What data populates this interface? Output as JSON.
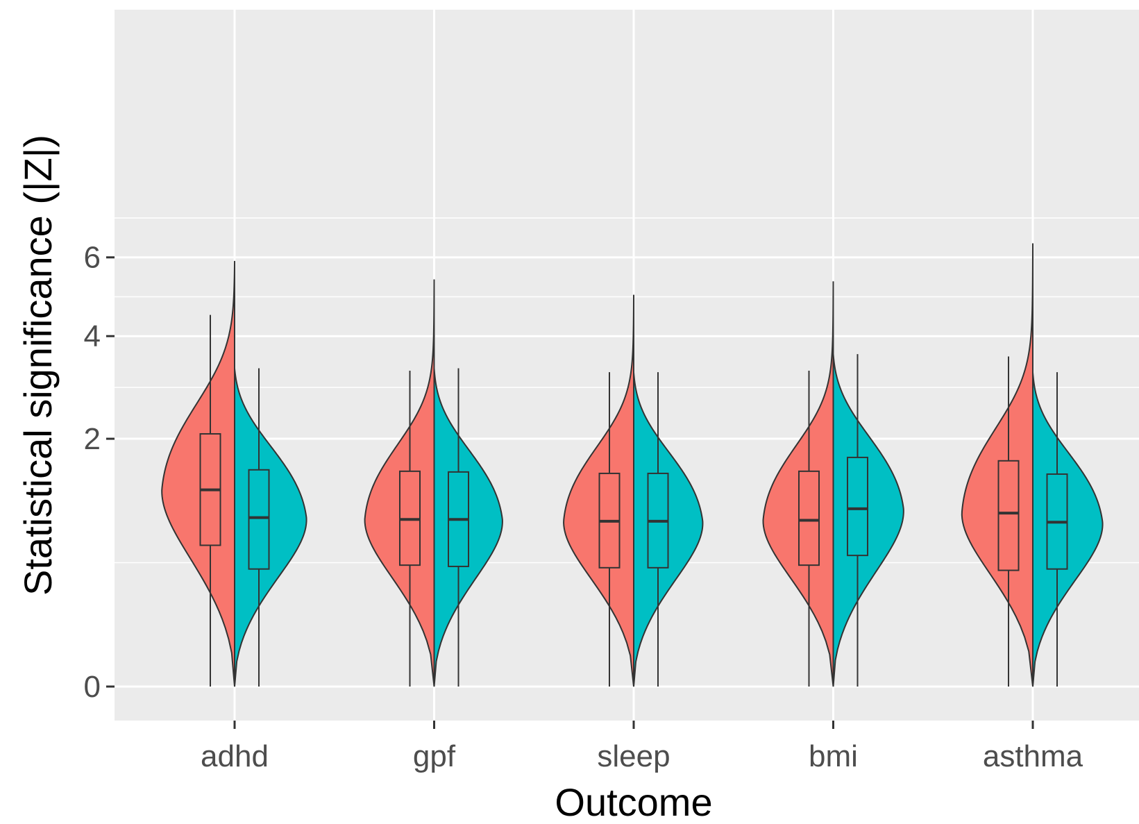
{
  "chart_data": {
    "type": "violin",
    "title": "",
    "xlabel": "Outcome",
    "ylabel": "Statistical significance (|Z|)",
    "y_scale": "sqrt",
    "ylim": [
      0,
      6.8
    ],
    "y_ticks": [
      0,
      2,
      4,
      6
    ],
    "y_tick_labels": [
      "0",
      "2",
      "4",
      "6"
    ],
    "categories": [
      "adhd",
      "gpf",
      "sleep",
      "bmi",
      "asthma"
    ],
    "legend": "none",
    "grid": true,
    "panel_background": "#ebebeb",
    "series": [
      {
        "color": "#f8766d",
        "side": "left",
        "box": [
          {
            "min": 0,
            "q1": 0.65,
            "median": 1.26,
            "q3": 2.08,
            "max": 4.5
          },
          {
            "min": 0,
            "q1": 0.48,
            "median": 0.91,
            "q3": 1.51,
            "max": 3.25
          },
          {
            "min": 0,
            "q1": 0.46,
            "median": 0.89,
            "q3": 1.48,
            "max": 3.22
          },
          {
            "min": 0,
            "q1": 0.48,
            "median": 0.9,
            "q3": 1.51,
            "max": 3.25
          },
          {
            "min": 0,
            "q1": 0.44,
            "median": 0.98,
            "q3": 1.66,
            "max": 3.55
          }
        ],
        "density_max": [
          5.9,
          5.4,
          5.0,
          5.35,
          6.4
        ],
        "density_peak_width": [
          0.98,
          0.93,
          0.94,
          0.94,
          0.95
        ]
      },
      {
        "color": "#00bfc4",
        "side": "right",
        "box": [
          {
            "min": 0,
            "q1": 0.45,
            "median": 0.93,
            "q3": 1.53,
            "max": 3.3
          },
          {
            "min": 0,
            "q1": 0.47,
            "median": 0.91,
            "q3": 1.5,
            "max": 3.3
          },
          {
            "min": 0,
            "q1": 0.46,
            "median": 0.89,
            "q3": 1.48,
            "max": 3.22
          },
          {
            "min": 0,
            "q1": 0.56,
            "median": 1.03,
            "q3": 1.71,
            "max": 3.6
          },
          {
            "min": 0,
            "q1": 0.45,
            "median": 0.88,
            "q3": 1.47,
            "max": 3.22
          }
        ],
        "density_max": [
          3.3,
          3.3,
          3.22,
          3.6,
          3.22
        ],
        "density_peak_width": [
          0.98,
          0.93,
          0.94,
          0.96,
          0.95
        ]
      }
    ]
  }
}
